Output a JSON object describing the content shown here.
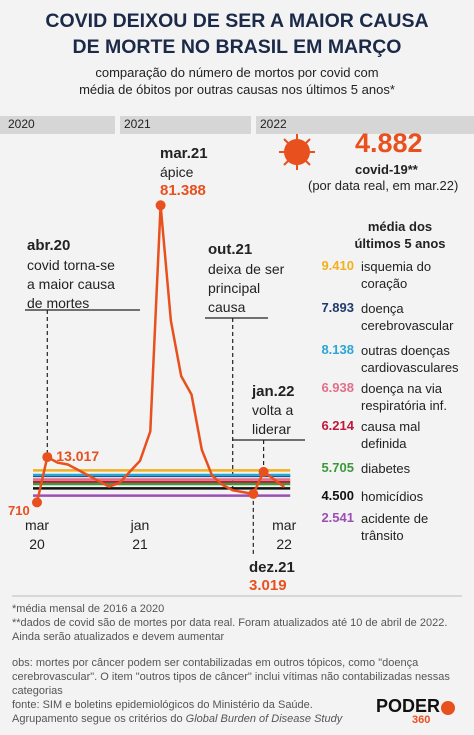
{
  "chart_data": {
    "type": "line",
    "title": "COVID DEIXOU DE SER A MAIOR CAUSA\nDE MORTE NO BRASIL EM MARÇO",
    "subtitle": "comparação do número de mortos por covid com\nmédia de óbitos por outras causas nos últimos 5 anos*",
    "years": [
      "2020",
      "2021",
      "2022"
    ],
    "categories": [
      "mar\n20",
      null,
      null,
      null,
      null,
      null,
      null,
      null,
      null,
      null,
      "jan\n21",
      null,
      null,
      null,
      null,
      null,
      null,
      null,
      null,
      null,
      null,
      null,
      null,
      null,
      "mar\n22"
    ],
    "ylim": [
      0,
      85000
    ],
    "series": [
      {
        "name": "covid-19**",
        "color": "#e8501e",
        "values": [
          710,
          13017,
          11500,
          11000,
          9500,
          8000,
          6500,
          5000,
          6000,
          9000,
          12000,
          20000,
          81388,
          50000,
          35000,
          30000,
          15000,
          8000,
          5500,
          4000,
          3500,
          3019,
          9000,
          7000,
          4882
        ],
        "value_labels": [
          "710",
          "13.017",
          null,
          null,
          null,
          null,
          null,
          null,
          null,
          null,
          null,
          null,
          "81.388",
          null,
          null,
          null,
          null,
          null,
          null,
          null,
          null,
          "3.019",
          null,
          null,
          "4.882"
        ],
        "note": "(por data real, em mar.22)"
      }
    ],
    "averages_title": "média dos\núltimos 5 anos",
    "averages": [
      {
        "name": "isquemia do\ncoração",
        "color": "#f2b01e",
        "value": 9410,
        "value_label": "9.410"
      },
      {
        "name": "doença\ncerebrovascular",
        "color": "#1f3a6e",
        "value": 7893,
        "value_label": "7.893"
      },
      {
        "name": "outras doenças\ncardiovasculares",
        "color": "#2aa6d6",
        "value": 8138,
        "value_label": "8.138"
      },
      {
        "name": "doença na via\nrespiratória inf.",
        "color": "#e0708a",
        "value": 6938,
        "value_label": "6.938"
      },
      {
        "name": "causa mal\ndefinida",
        "color": "#c0183a",
        "value": 6214,
        "value_label": "6.214"
      },
      {
        "name": "diabetes",
        "color": "#3a9a3a",
        "value": 5705,
        "value_label": "5.705"
      },
      {
        "name": "homicídios",
        "color": "#111111",
        "value": 4500,
        "value_label": "4.500"
      },
      {
        "name": "acidente de\ntrânsito",
        "color": "#9b4fb5",
        "value": 2541,
        "value_label": "2.541"
      }
    ],
    "annotations": [
      {
        "label": "abr.20",
        "text": "covid torna-se\na maior causa\nde mortes"
      },
      {
        "label": "mar.21",
        "text": "ápice"
      },
      {
        "label": "out.21",
        "text": "deixa de ser\nprincipal\ncausa"
      },
      {
        "label": "jan.22",
        "text": "volta a\nliderar"
      },
      {
        "label": "dez.21"
      }
    ]
  },
  "footer": {
    "notes": [
      "*média mensal de 2016 a 2020",
      "**dados de covid são de mortes por data real. Foram atualizados até 10 de abril de 2022. Ainda serão atualizados e devem aumentar"
    ],
    "obs": "obs: mortes por câncer podem ser contabilizadas em outros tópicos, como \"doença cerebrovascular\". O item \"outros tipos de câncer\" inclui vítimas não contabilizadas nessas categorias",
    "source": "fonte: SIM e boletins epidemiológicos do Ministério da Saúde.",
    "grouping": "Agrupamento segue os critérios do ",
    "grouping_italic": "Global Burden of Disease Study",
    "logo": "PODER",
    "logo_number": "360"
  }
}
